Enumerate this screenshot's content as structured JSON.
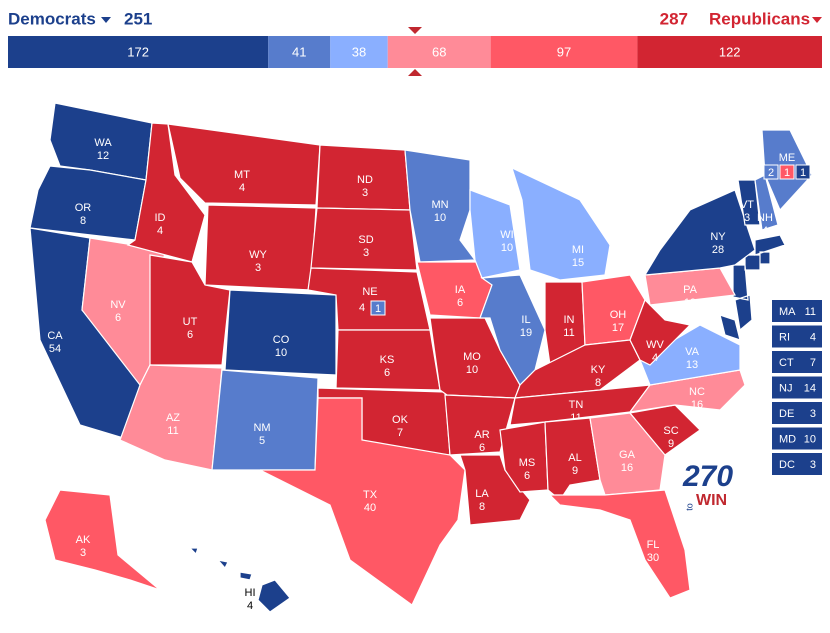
{
  "header": {
    "dem_label": "Democrats",
    "dem_total": 251,
    "rep_total": 287,
    "rep_label": "Republicans"
  },
  "tally": [
    {
      "value": 172,
      "color": "#1c408c"
    },
    {
      "value": 41,
      "color": "#577ccc"
    },
    {
      "value": 38,
      "color": "#8aafff"
    },
    {
      "value": 68,
      "color": "#ff8b98"
    },
    {
      "value": 97,
      "color": "#ff5865"
    },
    {
      "value": 122,
      "color": "#d22532"
    }
  ],
  "states": [
    {
      "abbr": "WA",
      "votes": 12,
      "color": "#1c408c"
    },
    {
      "abbr": "OR",
      "votes": 8,
      "color": "#1c408c"
    },
    {
      "abbr": "CA",
      "votes": 54,
      "color": "#1c408c"
    },
    {
      "abbr": "NV",
      "votes": 6,
      "color": "#ff8b98"
    },
    {
      "abbr": "ID",
      "votes": 4,
      "color": "#d22532"
    },
    {
      "abbr": "MT",
      "votes": 4,
      "color": "#d22532"
    },
    {
      "abbr": "WY",
      "votes": 3,
      "color": "#d22532"
    },
    {
      "abbr": "UT",
      "votes": 6,
      "color": "#d22532"
    },
    {
      "abbr": "CO",
      "votes": 10,
      "color": "#1c408c"
    },
    {
      "abbr": "AZ",
      "votes": 11,
      "color": "#ff8b98"
    },
    {
      "abbr": "NM",
      "votes": 5,
      "color": "#577ccc"
    },
    {
      "abbr": "ND",
      "votes": 3,
      "color": "#d22532"
    },
    {
      "abbr": "SD",
      "votes": 3,
      "color": "#d22532"
    },
    {
      "abbr": "NE",
      "votes": 4,
      "color": "#d22532",
      "splits": [
        {
          "votes": 1,
          "color": "#577ccc"
        }
      ]
    },
    {
      "abbr": "KS",
      "votes": 6,
      "color": "#d22532"
    },
    {
      "abbr": "OK",
      "votes": 7,
      "color": "#d22532"
    },
    {
      "abbr": "TX",
      "votes": 40,
      "color": "#ff5865"
    },
    {
      "abbr": "MN",
      "votes": 10,
      "color": "#577ccc"
    },
    {
      "abbr": "IA",
      "votes": 6,
      "color": "#ff5865"
    },
    {
      "abbr": "MO",
      "votes": 10,
      "color": "#d22532"
    },
    {
      "abbr": "AR",
      "votes": 6,
      "color": "#d22532"
    },
    {
      "abbr": "LA",
      "votes": 8,
      "color": "#d22532"
    },
    {
      "abbr": "WI",
      "votes": 10,
      "color": "#8aafff"
    },
    {
      "abbr": "IL",
      "votes": 19,
      "color": "#577ccc"
    },
    {
      "abbr": "MI",
      "votes": 15,
      "color": "#8aafff"
    },
    {
      "abbr": "IN",
      "votes": 11,
      "color": "#d22532"
    },
    {
      "abbr": "OH",
      "votes": 17,
      "color": "#ff5865"
    },
    {
      "abbr": "KY",
      "votes": 8,
      "color": "#d22532"
    },
    {
      "abbr": "TN",
      "votes": 11,
      "color": "#d22532"
    },
    {
      "abbr": "MS",
      "votes": 6,
      "color": "#d22532"
    },
    {
      "abbr": "AL",
      "votes": 9,
      "color": "#d22532"
    },
    {
      "abbr": "GA",
      "votes": 16,
      "color": "#ff8b98"
    },
    {
      "abbr": "FL",
      "votes": 30,
      "color": "#ff5865"
    },
    {
      "abbr": "SC",
      "votes": 9,
      "color": "#d22532"
    },
    {
      "abbr": "NC",
      "votes": 16,
      "color": "#ff8b98"
    },
    {
      "abbr": "VA",
      "votes": 13,
      "color": "#8aafff"
    },
    {
      "abbr": "WV",
      "votes": 4,
      "color": "#d22532"
    },
    {
      "abbr": "PA",
      "votes": 19,
      "color": "#ff8b98"
    },
    {
      "abbr": "NY",
      "votes": 28,
      "color": "#1c408c"
    },
    {
      "abbr": "VT",
      "votes": 3,
      "color": "#1c408c"
    },
    {
      "abbr": "NH",
      "votes": 4,
      "color": "#577ccc"
    },
    {
      "abbr": "ME",
      "color": "#577ccc",
      "splits": [
        {
          "votes": 2,
          "color": "#577ccc"
        },
        {
          "votes": 1,
          "color": "#ff5865"
        },
        {
          "votes": 1,
          "color": "#1c408c"
        }
      ]
    },
    {
      "abbr": "AK",
      "votes": 3,
      "color": "#ff5865"
    },
    {
      "abbr": "HI",
      "votes": 4,
      "color": "#1c408c"
    }
  ],
  "sidebar": [
    {
      "abbr": "MA",
      "votes": 11,
      "color": "#1c408c"
    },
    {
      "abbr": "RI",
      "votes": 4,
      "color": "#1c408c"
    },
    {
      "abbr": "CT",
      "votes": 7,
      "color": "#1c408c"
    },
    {
      "abbr": "NJ",
      "votes": 14,
      "color": "#1c408c"
    },
    {
      "abbr": "DE",
      "votes": 3,
      "color": "#1c408c"
    },
    {
      "abbr": "MD",
      "votes": 10,
      "color": "#1c408c"
    },
    {
      "abbr": "DC",
      "votes": 3,
      "color": "#1c408c"
    }
  ],
  "logo": {
    "number": "270",
    "to": "to",
    "win": "WIN"
  }
}
